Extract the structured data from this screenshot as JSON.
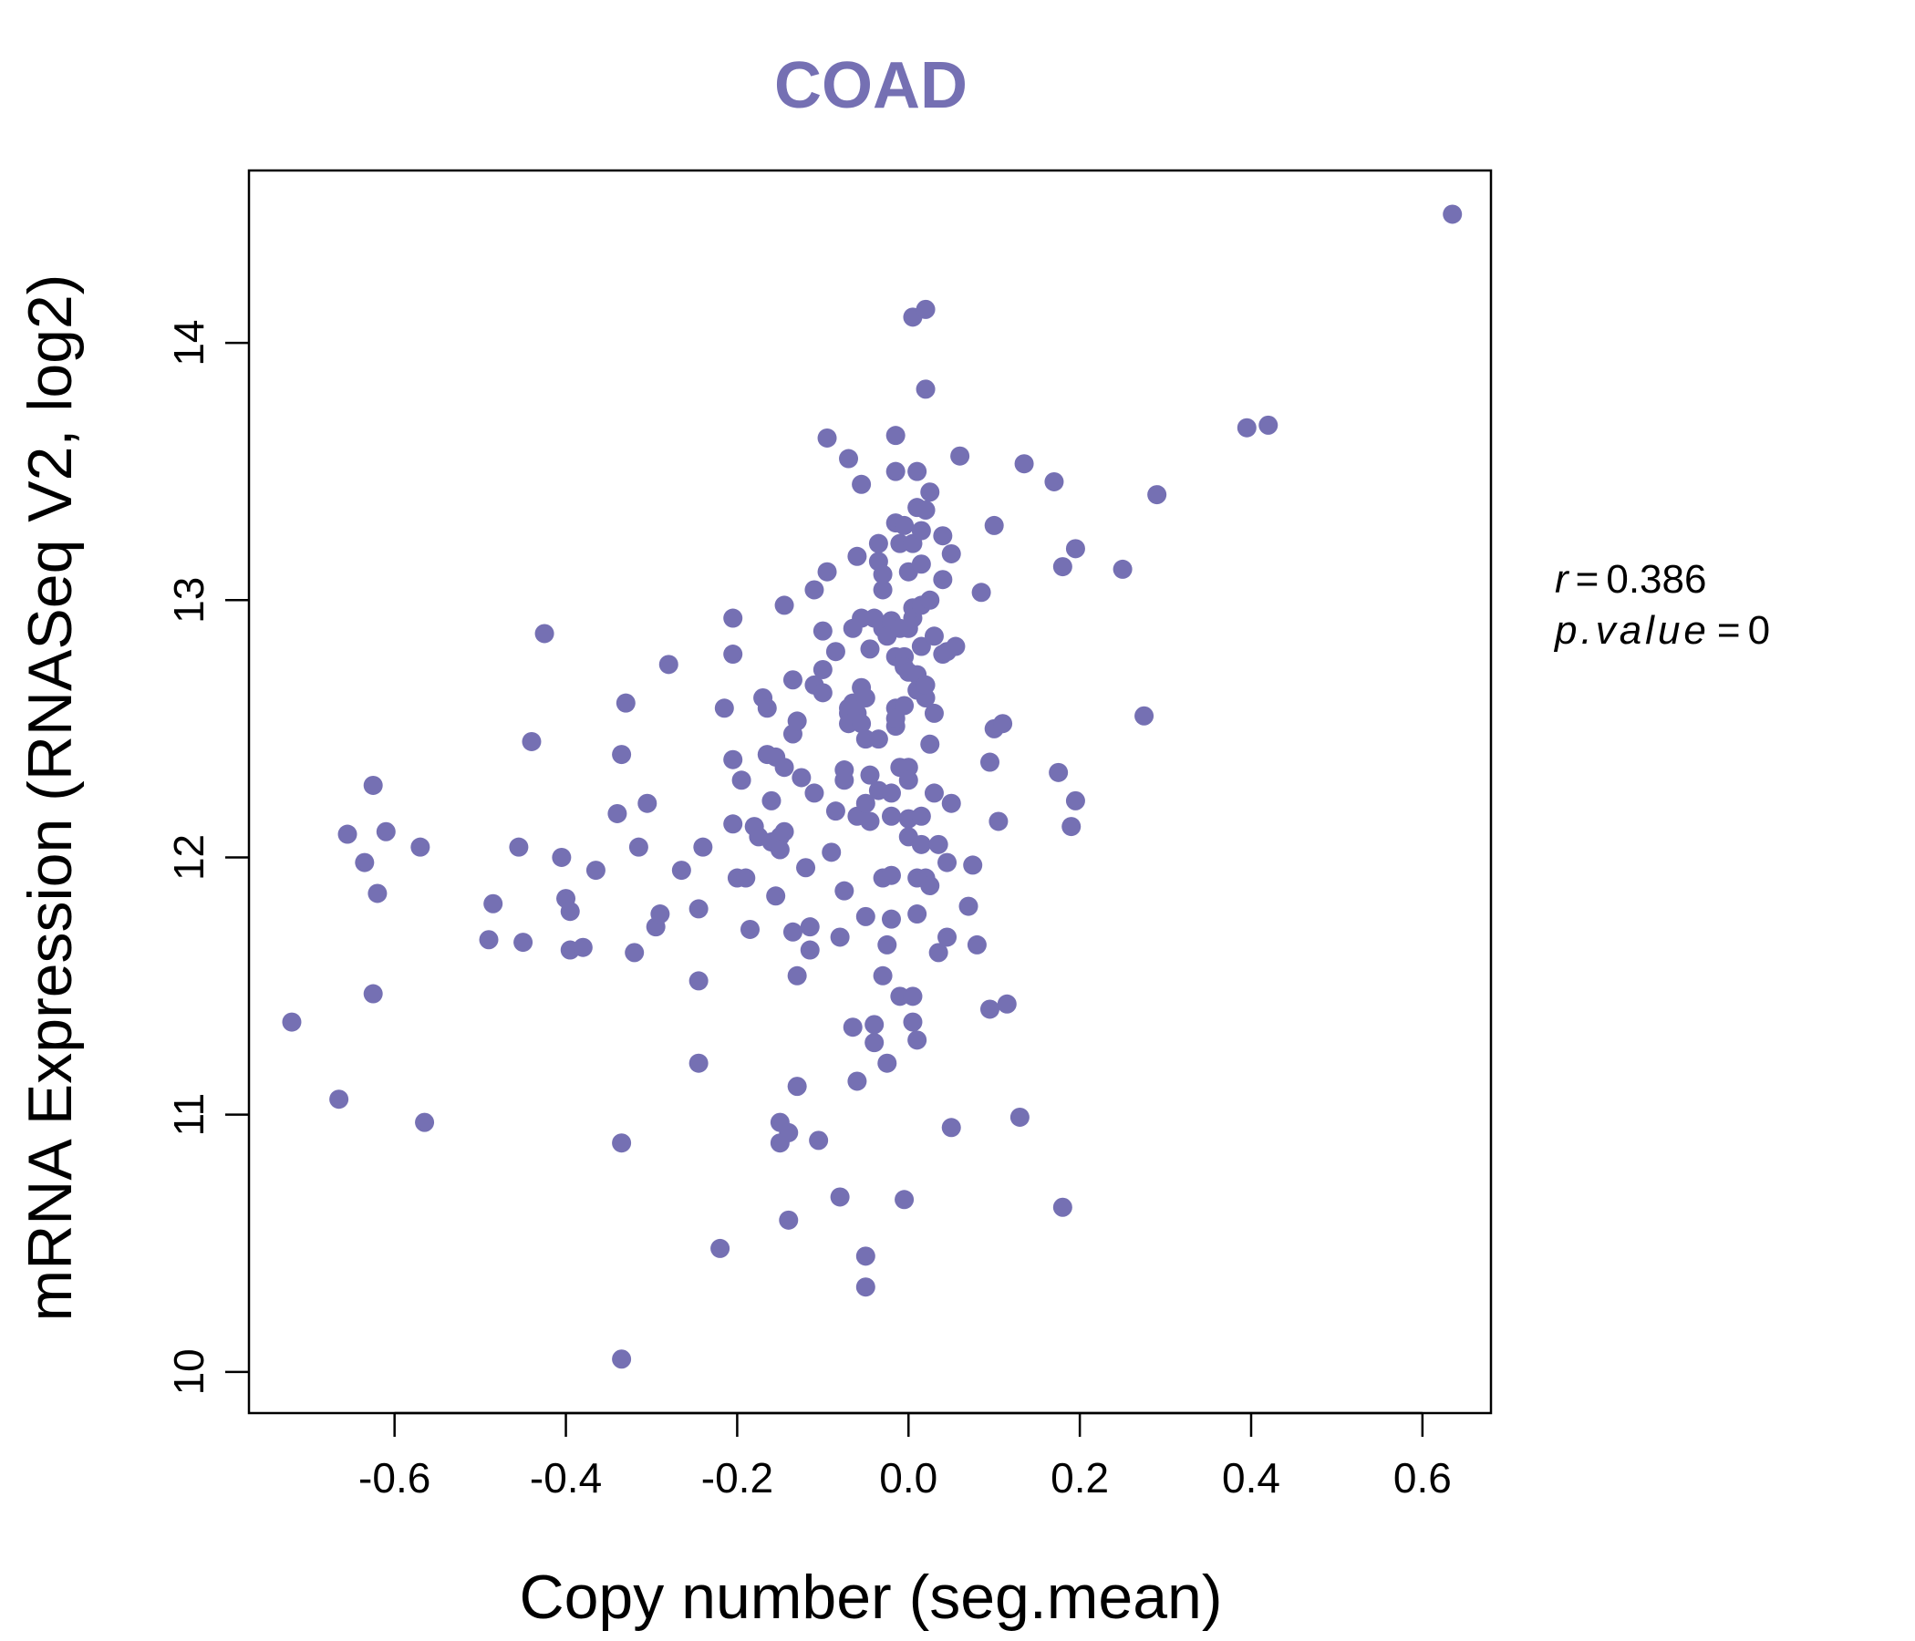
{
  "colors": {
    "point": "#7570b3",
    "title": "#7570b3",
    "axis": "#000000"
  },
  "chart_data": {
    "type": "scatter",
    "title": "COAD",
    "xlabel": "Copy number (seg.mean)",
    "ylabel": "mRNA Expression (RNASeq V2, log2)",
    "xlim": [
      -0.77,
      0.68
    ],
    "ylim": [
      9.84,
      14.67
    ],
    "xticks": [
      "-0.6",
      "-0.4",
      "-0.2",
      "0.0",
      "0.2",
      "0.4",
      "0.6"
    ],
    "xtick_values": [
      -0.6,
      -0.4,
      -0.2,
      0.0,
      0.2,
      0.4,
      0.6
    ],
    "yticks": [
      "10",
      "11",
      "12",
      "13",
      "14"
    ],
    "ytick_values": [
      10,
      11,
      12,
      13,
      14
    ],
    "grid": false,
    "stats": {
      "r_label": "r",
      "r_value": "0.386",
      "p_label": "p.value",
      "p_value": "0"
    },
    "points": [
      [
        -0.72,
        11.36
      ],
      [
        -0.665,
        11.06
      ],
      [
        -0.655,
        12.09
      ],
      [
        -0.635,
        11.98
      ],
      [
        -0.625,
        12.28
      ],
      [
        -0.625,
        11.47
      ],
      [
        -0.62,
        11.86
      ],
      [
        -0.61,
        12.1
      ],
      [
        -0.57,
        12.04
      ],
      [
        -0.565,
        10.97
      ],
      [
        -0.49,
        11.68
      ],
      [
        -0.485,
        11.82
      ],
      [
        -0.455,
        12.04
      ],
      [
        -0.45,
        11.67
      ],
      [
        -0.44,
        12.45
      ],
      [
        -0.425,
        12.87
      ],
      [
        -0.405,
        12.0
      ],
      [
        -0.4,
        11.84
      ],
      [
        -0.395,
        11.79
      ],
      [
        -0.395,
        11.64
      ],
      [
        -0.38,
        11.65
      ],
      [
        -0.365,
        11.95
      ],
      [
        -0.34,
        12.17
      ],
      [
        -0.335,
        10.89
      ],
      [
        -0.335,
        12.4
      ],
      [
        -0.335,
        10.05
      ],
      [
        -0.33,
        12.6
      ],
      [
        -0.32,
        11.63
      ],
      [
        -0.315,
        12.04
      ],
      [
        -0.305,
        12.21
      ],
      [
        -0.295,
        11.73
      ],
      [
        -0.29,
        11.78
      ],
      [
        -0.28,
        12.75
      ],
      [
        -0.265,
        11.95
      ],
      [
        -0.245,
        11.8
      ],
      [
        -0.245,
        11.52
      ],
      [
        -0.245,
        11.2
      ],
      [
        -0.24,
        12.04
      ],
      [
        -0.22,
        10.48
      ],
      [
        -0.215,
        12.58
      ],
      [
        -0.205,
        12.93
      ],
      [
        -0.205,
        12.79
      ],
      [
        -0.205,
        12.38
      ],
      [
        -0.205,
        12.13
      ],
      [
        -0.2,
        11.92
      ],
      [
        -0.195,
        12.3
      ],
      [
        -0.19,
        11.92
      ],
      [
        -0.185,
        11.72
      ],
      [
        -0.18,
        12.12
      ],
      [
        -0.175,
        12.08
      ],
      [
        -0.17,
        12.62
      ],
      [
        -0.165,
        12.58
      ],
      [
        -0.165,
        12.4
      ],
      [
        -0.16,
        12.22
      ],
      [
        -0.16,
        12.06
      ],
      [
        -0.155,
        12.39
      ],
      [
        -0.155,
        11.85
      ],
      [
        -0.15,
        12.08
      ],
      [
        -0.15,
        12.03
      ],
      [
        -0.15,
        10.97
      ],
      [
        -0.15,
        10.89
      ],
      [
        -0.145,
        12.1
      ],
      [
        -0.145,
        12.35
      ],
      [
        -0.145,
        12.98
      ],
      [
        -0.14,
        10.59
      ],
      [
        -0.14,
        10.93
      ],
      [
        -0.135,
        11.71
      ],
      [
        -0.135,
        12.48
      ],
      [
        -0.135,
        12.69
      ],
      [
        -0.13,
        12.53
      ],
      [
        -0.13,
        11.11
      ],
      [
        -0.13,
        11.54
      ],
      [
        -0.125,
        12.31
      ],
      [
        -0.12,
        11.96
      ],
      [
        -0.115,
        11.73
      ],
      [
        -0.115,
        11.64
      ],
      [
        -0.11,
        13.04
      ],
      [
        -0.11,
        12.67
      ],
      [
        -0.11,
        12.25
      ],
      [
        -0.105,
        10.9
      ],
      [
        -0.1,
        12.73
      ],
      [
        -0.1,
        12.64
      ],
      [
        -0.1,
        12.88
      ],
      [
        -0.095,
        13.11
      ],
      [
        -0.095,
        13.63
      ],
      [
        -0.09,
        12.02
      ],
      [
        -0.085,
        12.18
      ],
      [
        -0.085,
        12.8
      ],
      [
        -0.08,
        10.68
      ],
      [
        -0.08,
        11.69
      ],
      [
        -0.075,
        11.87
      ],
      [
        -0.075,
        12.34
      ],
      [
        -0.075,
        12.3
      ],
      [
        -0.07,
        12.58
      ],
      [
        -0.07,
        12.56
      ],
      [
        -0.07,
        12.52
      ],
      [
        -0.07,
        13.55
      ],
      [
        -0.065,
        12.89
      ],
      [
        -0.065,
        12.6
      ],
      [
        -0.065,
        11.34
      ],
      [
        -0.06,
        11.13
      ],
      [
        -0.06,
        12.56
      ],
      [
        -0.06,
        12.16
      ],
      [
        -0.06,
        13.17
      ],
      [
        -0.055,
        12.66
      ],
      [
        -0.055,
        12.52
      ],
      [
        -0.055,
        12.93
      ],
      [
        -0.055,
        13.45
      ],
      [
        -0.05,
        12.46
      ],
      [
        -0.05,
        11.77
      ],
      [
        -0.05,
        12.62
      ],
      [
        -0.05,
        12.21
      ],
      [
        -0.05,
        10.45
      ],
      [
        -0.05,
        10.33
      ],
      [
        -0.045,
        12.32
      ],
      [
        -0.045,
        12.14
      ],
      [
        -0.045,
        12.81
      ],
      [
        -0.04,
        12.93
      ],
      [
        -0.04,
        11.35
      ],
      [
        -0.04,
        11.28
      ],
      [
        -0.035,
        12.26
      ],
      [
        -0.035,
        12.46
      ],
      [
        -0.035,
        13.15
      ],
      [
        -0.035,
        13.22
      ],
      [
        -0.03,
        13.04
      ],
      [
        -0.03,
        13.1
      ],
      [
        -0.03,
        12.89
      ],
      [
        -0.03,
        11.54
      ],
      [
        -0.03,
        11.92
      ],
      [
        -0.025,
        11.66
      ],
      [
        -0.025,
        11.2
      ],
      [
        -0.025,
        12.86
      ],
      [
        -0.02,
        12.92
      ],
      [
        -0.02,
        12.25
      ],
      [
        -0.02,
        11.76
      ],
      [
        -0.02,
        12.16
      ],
      [
        -0.02,
        11.93
      ],
      [
        -0.015,
        13.3
      ],
      [
        -0.015,
        12.58
      ],
      [
        -0.015,
        12.51
      ],
      [
        -0.015,
        12.54
      ],
      [
        -0.015,
        12.78
      ],
      [
        -0.015,
        13.5
      ],
      [
        -0.015,
        13.64
      ],
      [
        -0.01,
        11.46
      ],
      [
        -0.01,
        12.35
      ],
      [
        -0.01,
        12.89
      ],
      [
        -0.01,
        13.22
      ],
      [
        -0.005,
        12.78
      ],
      [
        -0.005,
        13.29
      ],
      [
        -0.005,
        12.74
      ],
      [
        -0.005,
        12.59
      ],
      [
        -0.005,
        10.67
      ],
      [
        0.0,
        12.72
      ],
      [
        0.0,
        12.89
      ],
      [
        0.0,
        13.11
      ],
      [
        0.0,
        12.35
      ],
      [
        0.0,
        12.3
      ],
      [
        0.0,
        12.15
      ],
      [
        0.0,
        12.08
      ],
      [
        0.005,
        11.46
      ],
      [
        0.005,
        11.36
      ],
      [
        0.005,
        12.93
      ],
      [
        0.005,
        12.97
      ],
      [
        0.005,
        13.22
      ],
      [
        0.005,
        14.1
      ],
      [
        0.01,
        11.78
      ],
      [
        0.01,
        11.92
      ],
      [
        0.01,
        12.65
      ],
      [
        0.01,
        12.71
      ],
      [
        0.01,
        13.36
      ],
      [
        0.01,
        13.5
      ],
      [
        0.01,
        11.29
      ],
      [
        0.015,
        12.05
      ],
      [
        0.015,
        12.16
      ],
      [
        0.015,
        12.82
      ],
      [
        0.015,
        12.98
      ],
      [
        0.015,
        13.14
      ],
      [
        0.015,
        13.27
      ],
      [
        0.02,
        12.62
      ],
      [
        0.02,
        11.92
      ],
      [
        0.02,
        12.67
      ],
      [
        0.02,
        13.35
      ],
      [
        0.02,
        14.13
      ],
      [
        0.02,
        13.82
      ],
      [
        0.025,
        12.44
      ],
      [
        0.025,
        13.0
      ],
      [
        0.025,
        13.42
      ],
      [
        0.025,
        11.89
      ],
      [
        0.03,
        12.25
      ],
      [
        0.03,
        12.56
      ],
      [
        0.03,
        12.86
      ],
      [
        0.035,
        11.63
      ],
      [
        0.035,
        12.05
      ],
      [
        0.04,
        12.79
      ],
      [
        0.04,
        13.08
      ],
      [
        0.04,
        13.25
      ],
      [
        0.045,
        11.69
      ],
      [
        0.045,
        11.98
      ],
      [
        0.045,
        12.8
      ],
      [
        0.05,
        10.95
      ],
      [
        0.05,
        12.21
      ],
      [
        0.05,
        13.18
      ],
      [
        0.055,
        12.82
      ],
      [
        0.06,
        13.56
      ],
      [
        0.07,
        11.81
      ],
      [
        0.075,
        11.97
      ],
      [
        0.08,
        11.66
      ],
      [
        0.085,
        13.03
      ],
      [
        0.095,
        12.37
      ],
      [
        0.095,
        11.41
      ],
      [
        0.1,
        13.29
      ],
      [
        0.1,
        12.5
      ],
      [
        0.105,
        12.14
      ],
      [
        0.11,
        12.52
      ],
      [
        0.115,
        11.43
      ],
      [
        0.13,
        10.99
      ],
      [
        0.135,
        13.53
      ],
      [
        0.17,
        13.46
      ],
      [
        0.175,
        12.33
      ],
      [
        0.18,
        13.13
      ],
      [
        0.18,
        10.64
      ],
      [
        0.19,
        12.12
      ],
      [
        0.195,
        12.22
      ],
      [
        0.195,
        13.2
      ],
      [
        0.25,
        13.12
      ],
      [
        0.275,
        12.55
      ],
      [
        0.29,
        13.41
      ],
      [
        0.395,
        13.67
      ],
      [
        0.42,
        13.68
      ],
      [
        0.635,
        14.5
      ]
    ]
  }
}
